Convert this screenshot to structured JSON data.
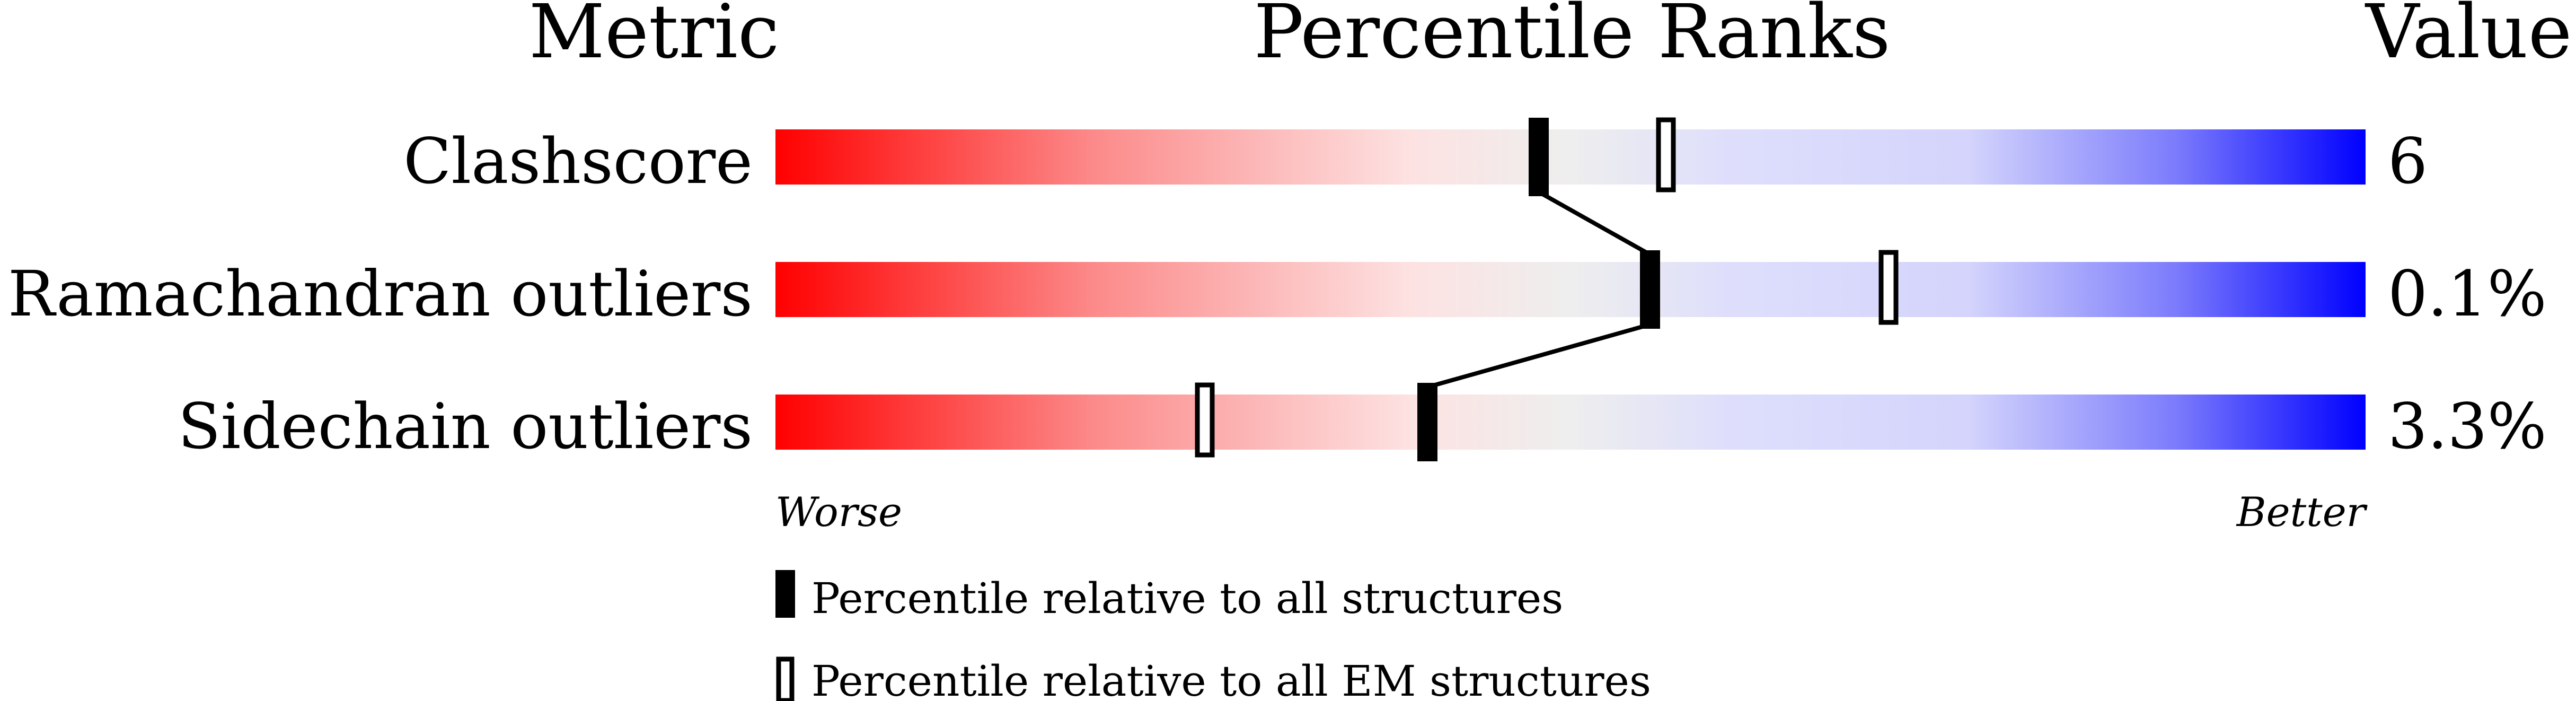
{
  "chart_data": {
    "type": "percentile-slider",
    "headers": {
      "metric": "Metric",
      "ranks": "Percentile Ranks",
      "value": "Value"
    },
    "axis": {
      "worse": "Worse",
      "better": "Better",
      "range": [
        0,
        100
      ]
    },
    "metrics": [
      {
        "name": "Clashscore",
        "value": "6",
        "percentile_all": 48,
        "percentile_em": 56
      },
      {
        "name": "Ramachandran outliers",
        "value": "0.1%",
        "percentile_all": 55,
        "percentile_em": 70
      },
      {
        "name": "Sidechain outliers",
        "value": "3.3%",
        "percentile_all": 41,
        "percentile_em": 27
      }
    ],
    "legend": {
      "all": "Percentile relative to all structures",
      "em": "Percentile relative to all EM structures"
    },
    "colors": {
      "worse": "#ff0000",
      "middle": "#eeeeee",
      "better": "#0000ff",
      "marker": "#000000"
    }
  }
}
